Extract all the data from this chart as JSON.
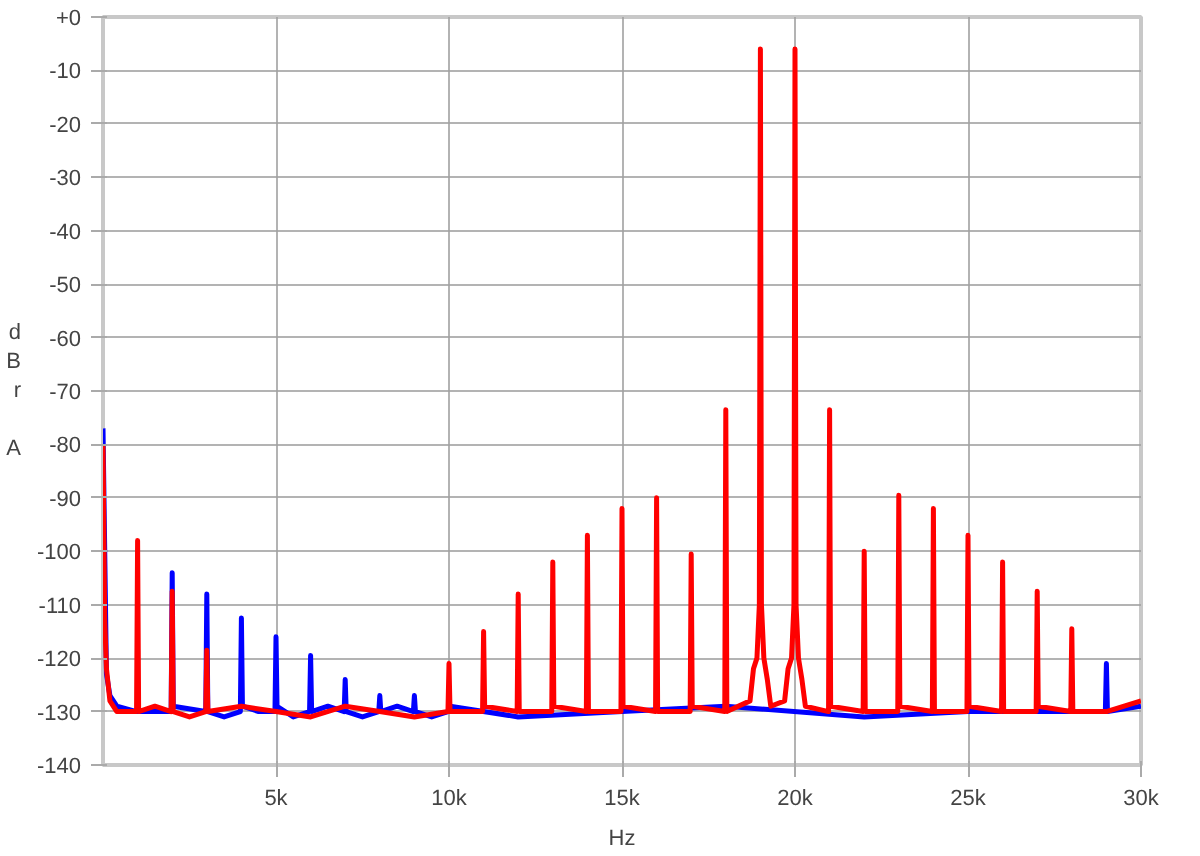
{
  "chart_data": {
    "type": "line",
    "xlabel": "Hz",
    "ylabel": "dBr A",
    "xlim": [
      0,
      30000
    ],
    "ylim": [
      -140,
      0
    ],
    "xticks": [
      {
        "value": 5000,
        "label": "5k"
      },
      {
        "value": 10000,
        "label": "10k"
      },
      {
        "value": 15000,
        "label": "15k"
      },
      {
        "value": 20000,
        "label": "20k"
      },
      {
        "value": 25000,
        "label": "25k"
      },
      {
        "value": 30000,
        "label": "30k"
      }
    ],
    "yticks": [
      {
        "value": 0,
        "label": "+0"
      },
      -10,
      -20,
      -30,
      -40,
      -50,
      -60,
      -70,
      -80,
      -90,
      -100,
      -110,
      -120,
      -130,
      -140
    ],
    "grid": true,
    "line_style": "solid",
    "marker": "none",
    "series": [
      {
        "color": "#0000ff",
        "x": [
          0,
          100,
          200,
          400,
          970,
          1030,
          1970,
          2000,
          2030,
          2970,
          3000,
          3030,
          3500,
          3970,
          4000,
          4030,
          4500,
          4970,
          5000,
          5030,
          5500,
          5970,
          6000,
          6030,
          6500,
          6970,
          7000,
          7030,
          7500,
          7970,
          8000,
          8030,
          8500,
          8970,
          9000,
          9030,
          9500,
          9970,
          10030,
          12000,
          15000,
          18000,
          22000,
          25000,
          28970,
          29000,
          29030,
          30000
        ],
        "values": [
          -77,
          -123,
          -127,
          -129,
          -130,
          -130,
          -130,
          -104,
          -129,
          -130,
          -108,
          -130,
          -131,
          -130,
          -112.5,
          -129,
          -130,
          -130,
          -116,
          -129,
          -131,
          -130,
          -119.5,
          -130,
          -129,
          -130,
          -124,
          -130,
          -131,
          -130,
          -127,
          -130,
          -129,
          -130,
          -127,
          -130,
          -131,
          -130,
          -129,
          -131,
          -130,
          -129,
          -131,
          -130,
          -130,
          -121,
          -130,
          -129
        ]
      },
      {
        "color": "#ff0000",
        "x": [
          0,
          50,
          100,
          200,
          400,
          970,
          1000,
          1030,
          1500,
          1970,
          2000,
          2030,
          2500,
          2970,
          3000,
          3030,
          4000,
          5000,
          6000,
          7000,
          8000,
          9000,
          9970,
          10000,
          10030,
          10970,
          11000,
          11030,
          11970,
          12000,
          12030,
          12970,
          13000,
          13030,
          13970,
          14000,
          14030,
          14970,
          15000,
          15030,
          15970,
          16000,
          16030,
          16970,
          17000,
          17030,
          17970,
          18000,
          18030,
          18700,
          18800,
          18900,
          18970,
          19000,
          19030,
          19100,
          19200,
          19300,
          19700,
          19800,
          19900,
          19970,
          20000,
          20030,
          20100,
          20200,
          20300,
          20970,
          21000,
          21030,
          21970,
          22000,
          22030,
          22970,
          23000,
          23030,
          23970,
          24000,
          24030,
          24970,
          25000,
          25030,
          25970,
          26000,
          26030,
          26970,
          27000,
          27030,
          27970,
          28000,
          28030,
          29000,
          30000
        ],
        "values": [
          -80,
          -113,
          -122,
          -128,
          -130,
          -130,
          -98,
          -130,
          -129,
          -130,
          -107.5,
          -130,
          -131,
          -130,
          -118.5,
          -130,
          -129,
          -130,
          -131,
          -129,
          -130,
          -131,
          -130,
          -121,
          -130,
          -130,
          -115,
          -129,
          -130,
          -108,
          -130,
          -130,
          -102,
          -129,
          -130,
          -97,
          -130,
          -130,
          -92,
          -129,
          -130,
          -90,
          -130,
          -130,
          -100.5,
          -129,
          -130,
          -73.5,
          -130,
          -128,
          -122,
          -120,
          -110,
          -6,
          -110,
          -120,
          -124,
          -129,
          -128,
          -122,
          -120,
          -110,
          -6,
          -110,
          -120,
          -124,
          -129,
          -130,
          -73.5,
          -129,
          -130,
          -100,
          -130,
          -130,
          -89.5,
          -129,
          -130,
          -92,
          -130,
          -130,
          -97,
          -129,
          -130,
          -102,
          -130,
          -130,
          -107.5,
          -129,
          -130,
          -114.5,
          -130,
          -130,
          -128
        ]
      }
    ]
  }
}
